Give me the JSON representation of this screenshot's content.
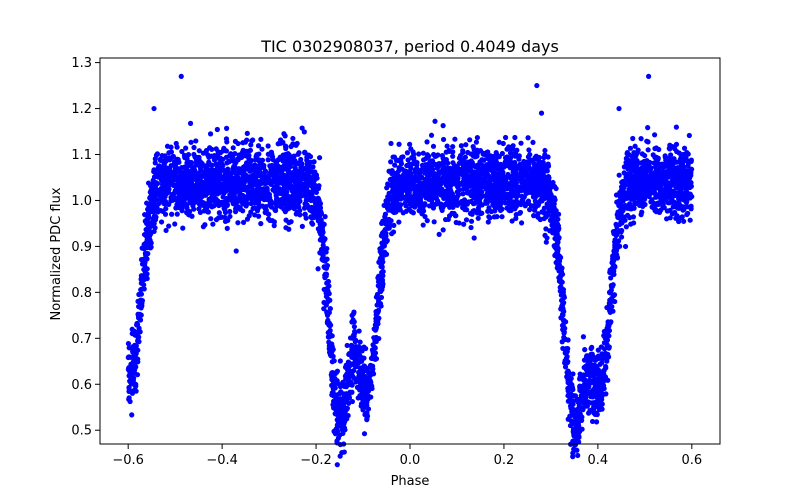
{
  "chart_data": {
    "type": "scatter",
    "title": "TIC 0302908037, period 0.4049 days",
    "xlabel": "Phase",
    "ylabel": "Normalized PDC flux",
    "xlim": [
      -0.66,
      0.66
    ],
    "ylim": [
      0.47,
      1.31
    ],
    "x_ticks": [
      -0.6,
      -0.4,
      -0.2,
      0.0,
      0.2,
      0.4,
      0.6
    ],
    "x_tick_labels": [
      "−0.6",
      "−0.4",
      "−0.2",
      "0.0",
      "0.2",
      "0.4",
      "0.6"
    ],
    "y_ticks": [
      0.5,
      0.6,
      0.7,
      0.8,
      0.9,
      1.0,
      1.1,
      1.2,
      1.3
    ],
    "y_tick_labels": [
      "0.5",
      "0.6",
      "0.7",
      "0.8",
      "0.9",
      "1.0",
      "1.1",
      "1.2",
      "1.3"
    ],
    "grid": false,
    "legend": "none",
    "series": [
      {
        "color": "#0000ff",
        "marker": "circle",
        "period_days": 0.4049,
        "eclipses": [
          {
            "phase": -0.595,
            "min_flux": 0.57
          },
          {
            "phase": -0.15,
            "min_flux": 0.49
          },
          {
            "phase": -0.09,
            "min_flux": 0.56
          },
          {
            "phase": 0.35,
            "min_flux": 0.49
          },
          {
            "phase": 0.405,
            "min_flux": 0.58
          }
        ],
        "notable_points": [
          {
            "x": -0.487,
            "y": 1.27
          },
          {
            "x": 0.508,
            "y": 1.27
          },
          {
            "x": 0.27,
            "y": 1.25
          },
          {
            "x": -0.545,
            "y": 1.2
          },
          {
            "x": 0.445,
            "y": 1.2
          },
          {
            "x": 0.28,
            "y": 1.19
          },
          {
            "x": -0.37,
            "y": 0.89
          }
        ]
      }
    ]
  }
}
